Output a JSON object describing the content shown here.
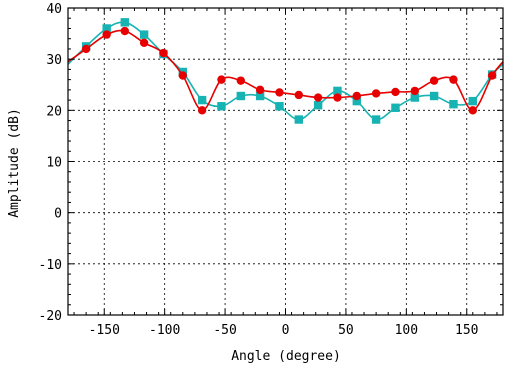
{
  "chart_data": {
    "type": "line",
    "title": "",
    "xlabel": "Angle (degree)",
    "ylabel": "Amplitude (dB)",
    "xlim": [
      -180,
      180
    ],
    "ylim": [
      -20,
      40
    ],
    "xticks": [
      -150,
      -100,
      -50,
      0,
      50,
      100,
      150
    ],
    "yticks": [
      -20,
      -10,
      0,
      10,
      20,
      30,
      40
    ],
    "xtick_labels": [
      "-150",
      "-100",
      "-50",
      "0",
      "50",
      "100",
      "150"
    ],
    "ytick_labels": [
      "-20",
      "-10",
      "0",
      "10",
      "20",
      "30",
      "40"
    ],
    "grid": true,
    "legend": "none",
    "series": [
      {
        "color": "#e60000",
        "marker": "circle",
        "x": [
          -180,
          -165,
          -148,
          -133,
          -117,
          -101,
          -85,
          -69,
          -53,
          -37,
          -21,
          -5,
          11,
          27,
          43,
          59,
          75,
          91,
          107,
          123,
          139,
          155,
          171,
          180
        ],
        "y": [
          29.5,
          32.0,
          34.8,
          35.5,
          33.2,
          31.2,
          26.8,
          20.0,
          26.0,
          25.8,
          24.0,
          23.5,
          23.0,
          22.5,
          22.5,
          22.8,
          23.3,
          23.6,
          23.8,
          25.8,
          26.0,
          20.0,
          26.8,
          29.5
        ]
      },
      {
        "color": "#17b3b3",
        "marker": "square",
        "x": [
          -180,
          -165,
          -148,
          -133,
          -117,
          -101,
          -85,
          -69,
          -53,
          -37,
          -21,
          -5,
          11,
          27,
          43,
          59,
          75,
          91,
          107,
          123,
          139,
          155,
          171,
          180
        ],
        "y": [
          29.0,
          32.5,
          36.0,
          37.2,
          34.8,
          31.0,
          27.5,
          22.0,
          20.8,
          22.8,
          22.8,
          20.8,
          18.2,
          21.0,
          23.8,
          21.8,
          18.2,
          20.5,
          22.5,
          22.8,
          21.2,
          21.8,
          27.0,
          29.0
        ]
      }
    ]
  }
}
